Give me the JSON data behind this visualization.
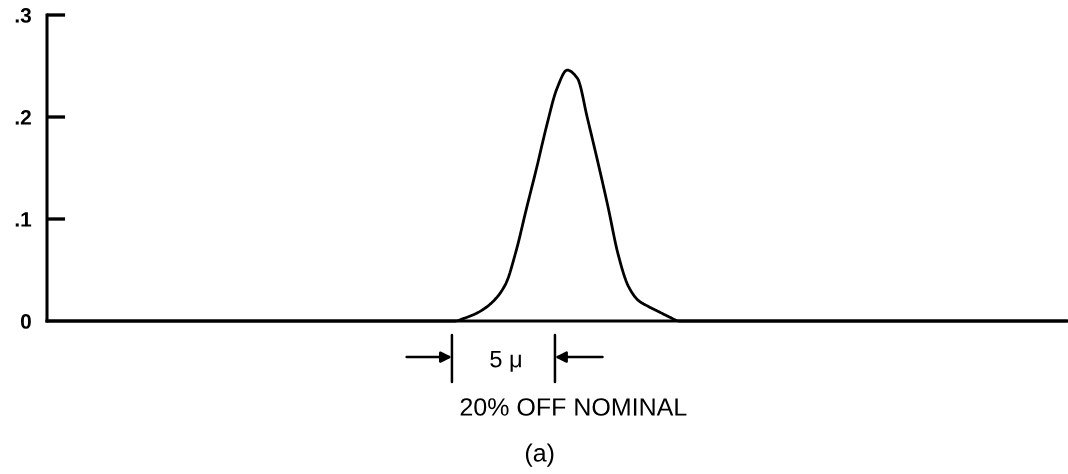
{
  "chart_data": {
    "type": "line",
    "categories": [
      null,
      null,
      null,
      null,
      null,
      null,
      null,
      null,
      null,
      null,
      null,
      null,
      null,
      null,
      null,
      null,
      null,
      null,
      null,
      null,
      null,
      null,
      null,
      null,
      null,
      null,
      null,
      null,
      null,
      null,
      null,
      null,
      null,
      null,
      null,
      null,
      null,
      null,
      null,
      null,
      null,
      null,
      null,
      null,
      null,
      null,
      null,
      null,
      null,
      null,
      null,
      null,
      null,
      null,
      null,
      null,
      null,
      null,
      null,
      null,
      null,
      null,
      null,
      null,
      null,
      null,
      null,
      null,
      null,
      null,
      null,
      null,
      null,
      null,
      null,
      null,
      null,
      null,
      null,
      null,
      null,
      null,
      null,
      null,
      null,
      null,
      null,
      null,
      null,
      null,
      null,
      null,
      null,
      null,
      null,
      null,
      null,
      null,
      null,
      null,
      null
    ],
    "series": [
      {
        "color": "#000000",
        "values": [
          0,
          0,
          0,
          0,
          0,
          0,
          0,
          0,
          0,
          0,
          0,
          0,
          0,
          0,
          0,
          0,
          0,
          0,
          0,
          0,
          0,
          0,
          0,
          0,
          0,
          0,
          0,
          0,
          0,
          0,
          0,
          0,
          0,
          0,
          0,
          0,
          0,
          0,
          0,
          0,
          0,
          0.003,
          0.007,
          0.013,
          0.022,
          0.037,
          0.069,
          0.11,
          0.15,
          0.192,
          0.228,
          0.246,
          0.238,
          0.198,
          0.156,
          0.112,
          0.065,
          0.034,
          0.02,
          0.014,
          0.009,
          0.004,
          0,
          0,
          0,
          0,
          0,
          0,
          0,
          0,
          0,
          0,
          0,
          0,
          0,
          0,
          0,
          0,
          0,
          0,
          0,
          0,
          0,
          0,
          0,
          0,
          0,
          0,
          0,
          0,
          0,
          0,
          0,
          0,
          0,
          0,
          0,
          0,
          0,
          0,
          0
        ]
      }
    ],
    "ylim": [
      0,
      0.3
    ],
    "yticks": [
      0,
      {
        "value": 0.1,
        "label": ".1"
      },
      {
        "value": 0.2,
        "label": ".2"
      },
      {
        "value": 0.3,
        "label": ".3"
      }
    ],
    "tick_labels": "y",
    "annotations": [
      "5 μ",
      "20% OFF NOMINAL",
      "(a)"
    ]
  }
}
